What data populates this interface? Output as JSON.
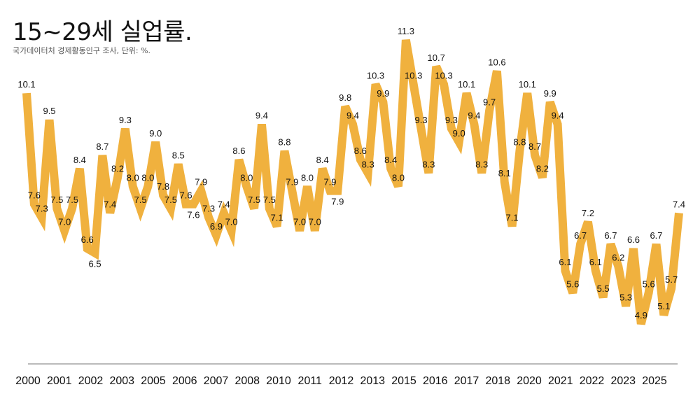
{
  "chart_data": {
    "type": "line",
    "title": "15~29세 실업률.",
    "subtitle": "국가데이터처 경제활동인구 조사, 단위: %.",
    "xlabel": "",
    "ylabel": "",
    "ylim": [
      4.0,
      11.3
    ],
    "grid": false,
    "color": "#F0B13E",
    "x_tick_labels": [
      "2000",
      "2001",
      "2002",
      "2003",
      "2005",
      "2006",
      "2007",
      "2008",
      "2010",
      "2011",
      "2012",
      "2013",
      "2015",
      "2016",
      "2017",
      "2018",
      "2020",
      "2021",
      "2022",
      "2023",
      "2025"
    ],
    "values": [
      10.1,
      7.6,
      7.3,
      9.5,
      7.5,
      7.0,
      7.5,
      8.4,
      6.6,
      6.5,
      8.7,
      7.4,
      8.2,
      9.3,
      8.0,
      7.5,
      8.0,
      9.0,
      7.8,
      7.5,
      8.5,
      7.6,
      7.6,
      7.9,
      7.3,
      6.9,
      7.4,
      7.0,
      8.6,
      8.0,
      7.5,
      9.4,
      7.5,
      7.1,
      8.8,
      7.9,
      7.0,
      8.0,
      7.0,
      8.4,
      7.9,
      7.9,
      9.8,
      9.4,
      8.6,
      8.3,
      10.3,
      9.9,
      8.4,
      8.0,
      11.3,
      10.3,
      9.3,
      8.3,
      10.7,
      10.3,
      9.3,
      9.0,
      10.1,
      9.4,
      8.3,
      9.7,
      10.6,
      8.1,
      7.1,
      8.8,
      10.1,
      8.7,
      8.2,
      9.9,
      9.4,
      6.1,
      5.6,
      6.7,
      7.2,
      6.1,
      5.5,
      6.7,
      6.2,
      5.3,
      6.6,
      4.9,
      5.6,
      6.7,
      5.1,
      5.7,
      7.4
    ]
  }
}
